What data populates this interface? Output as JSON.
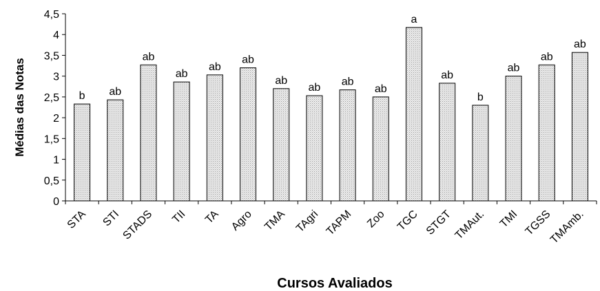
{
  "chart_data": {
    "type": "bar",
    "title": "",
    "xlabel": "Cursos Avaliados",
    "ylabel": "Médias das Notas",
    "ylim": [
      0,
      4.5
    ],
    "y_ticks": [
      "0",
      "0,5",
      "1",
      "1,5",
      "2",
      "2,5",
      "3",
      "3,5",
      "4",
      "4,5"
    ],
    "grid": false,
    "legend": "none",
    "bar_color": "#e4e4e4",
    "categories": [
      "STA",
      "STI",
      "STADS",
      "TII",
      "TA",
      "Agro",
      "TMA",
      "TAgri",
      "TAPM",
      "Zoo",
      "TGC",
      "STGT",
      "TMAut.",
      "TMI",
      "TGSS",
      "TMAmb."
    ],
    "values": [
      2.33,
      2.43,
      3.27,
      2.86,
      3.03,
      3.2,
      2.7,
      2.53,
      2.67,
      2.5,
      4.17,
      2.83,
      2.3,
      3.0,
      3.27,
      3.57
    ],
    "data_labels": [
      "b",
      "ab",
      "ab",
      "ab",
      "ab",
      "ab",
      "ab",
      "ab",
      "ab",
      "ab",
      "a",
      "ab",
      "b",
      "ab",
      "ab",
      "ab"
    ]
  }
}
